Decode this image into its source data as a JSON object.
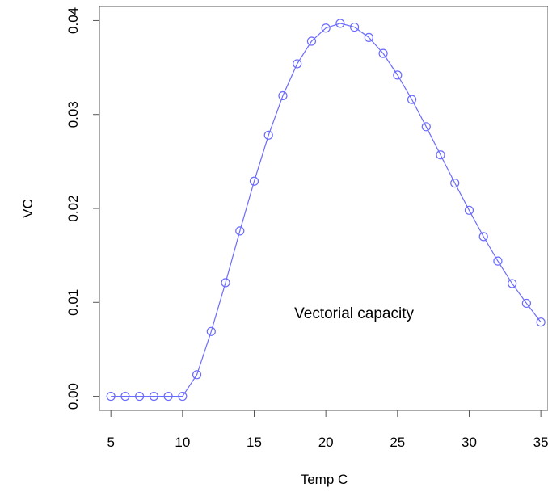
{
  "chart_data": {
    "type": "line",
    "title": "",
    "xlabel": "Temp C",
    "ylabel": "VC",
    "xlim": [
      4.2,
      35.5
    ],
    "ylim": [
      -0.0015,
      0.0415
    ],
    "xticks": [
      5,
      10,
      15,
      20,
      25,
      30,
      35
    ],
    "xtick_labels": [
      "5",
      "10",
      "15",
      "20",
      "25",
      "30",
      "35"
    ],
    "yticks": [
      0.0,
      0.01,
      0.02,
      0.03,
      0.04
    ],
    "ytick_labels": [
      "0.00",
      "0.01",
      "0.02",
      "0.03",
      "0.04"
    ],
    "grid": false,
    "legend": "none",
    "annotation": {
      "text": "Vectorial capacity",
      "x": 17.8,
      "y": 0.0083
    },
    "series": [
      {
        "color": "#6b6bff",
        "marker": "open-circle",
        "x": [
          5,
          6,
          7,
          8,
          9,
          10,
          11,
          12,
          13,
          14,
          15,
          16,
          17,
          18,
          19,
          20,
          21,
          22,
          23,
          24,
          25,
          26,
          27,
          28,
          29,
          30,
          31,
          32,
          33,
          34,
          35
        ],
        "values": [
          0.0,
          0.0,
          0.0,
          0.0,
          0.0,
          0.0,
          0.0023,
          0.0069,
          0.0121,
          0.0176,
          0.0229,
          0.0278,
          0.032,
          0.0354,
          0.0378,
          0.0392,
          0.0397,
          0.0393,
          0.0382,
          0.0365,
          0.0342,
          0.0316,
          0.0287,
          0.0257,
          0.0227,
          0.0198,
          0.017,
          0.0144,
          0.012,
          0.0099,
          0.0079
        ]
      }
    ]
  }
}
